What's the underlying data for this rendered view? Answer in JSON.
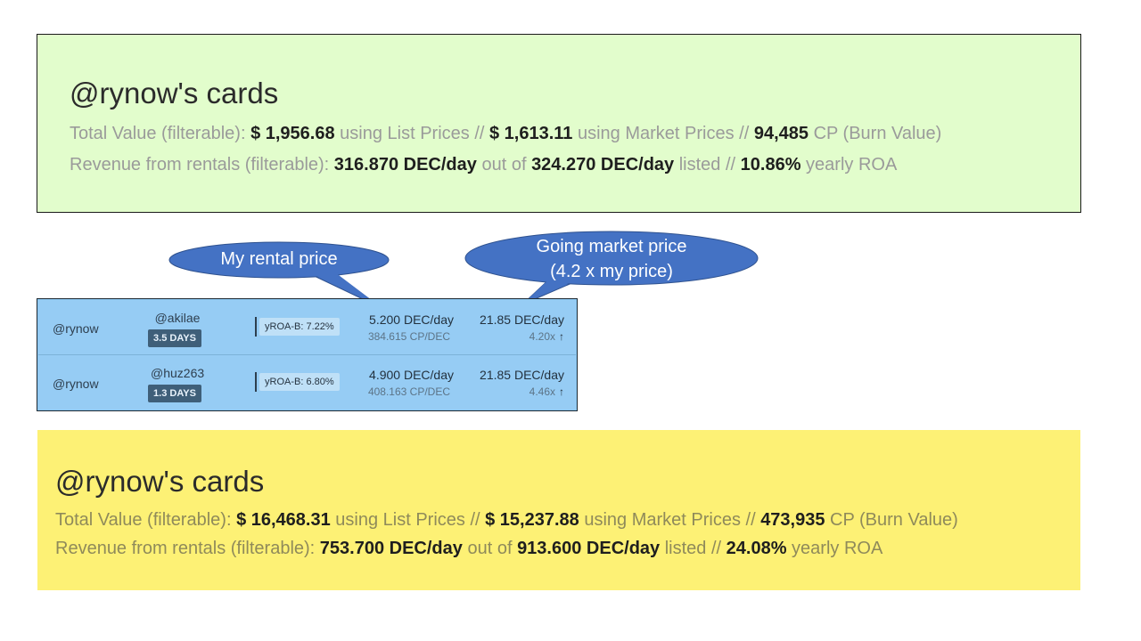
{
  "panel_green": {
    "title": "@rynow's cards",
    "total_prefix": "Total Value (filterable): ",
    "list_value": "$ 1,956.68",
    "list_suffix": " using List Prices //  ",
    "market_value": "$ 1,613.11",
    "market_suffix": " using Market Prices //  ",
    "cp_value": "94,485",
    "cp_suffix": " CP (Burn Value)",
    "rev_prefix": "Revenue from rentals (filterable): ",
    "rev_rented": "316.870 DEC/day",
    "rev_mid": " out of ",
    "rev_listed": "324.270 DEC/day",
    "rev_listed_suffix": " listed // ",
    "roa_value": "10.86%",
    "roa_suffix": " yearly ROA"
  },
  "rentals": [
    {
      "owner": "@rynow",
      "renter": "@akilae",
      "days": "3.5 DAYS",
      "yroa": "yROA-B: 7.22%",
      "price": "5.200 DEC/day",
      "cp_per_dec": "384.615 CP/DEC",
      "market_price": "21.85 DEC/day",
      "ratio": "4.20x",
      "arrow": "↑"
    },
    {
      "owner": "@rynow",
      "renter": "@huz263",
      "days": "1.3 DAYS",
      "yroa": "yROA-B: 6.80%",
      "price": "4.900 DEC/day",
      "cp_per_dec": "408.163 CP/DEC",
      "market_price": "21.85 DEC/day",
      "ratio": "4.46x",
      "arrow": "↑"
    }
  ],
  "callouts": {
    "my_price": "My rental price",
    "market_price_line1": "Going market price",
    "market_price_line2": "(4.2 x my price)"
  },
  "panel_yellow": {
    "title": "@rynow's cards",
    "total_prefix": "Total Value (filterable): ",
    "list_value": "$ 16,468.31",
    "list_suffix": " using List Prices //  ",
    "market_value": "$ 15,237.88",
    "market_suffix": " using Market Prices //  ",
    "cp_value": "473,935",
    "cp_suffix": " CP (Burn Value)",
    "rev_prefix": "Revenue from rentals (filterable): ",
    "rev_rented": "753.700 DEC/day",
    "rev_mid": " out of ",
    "rev_listed": "913.600 DEC/day",
    "rev_listed_suffix": " listed // ",
    "roa_value": "24.08%",
    "roa_suffix": " yearly ROA"
  },
  "colors": {
    "green_panel": "#e2fdcc",
    "yellow_panel": "#fdf175",
    "table_bg": "#96ccf4",
    "callout_fill": "#4472c4"
  }
}
